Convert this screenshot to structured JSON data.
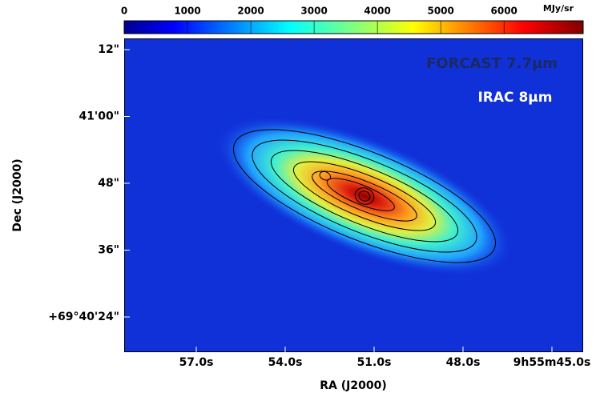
{
  "chart_data": {
    "type": "image",
    "colorbar": {
      "lim": [
        0,
        7250
      ],
      "ticks": [
        0,
        1000,
        2000,
        3000,
        4000,
        5000,
        6000
      ],
      "unit": "MJy/sr"
    },
    "x_label": "RA (J2000)",
    "y_label": "Dec (J2000)",
    "x_tick_labels": [
      "57.0s",
      "54.0s",
      "51.0s",
      "48.0s",
      "9h55m45.0s"
    ],
    "y_tick_labels": [
      "12\"",
      "41'00\"",
      "48\"",
      "36\"",
      "+69°40'24\""
    ],
    "annotations": [
      "FORCAST 7.7μm",
      "IRAC 8μm"
    ]
  }
}
